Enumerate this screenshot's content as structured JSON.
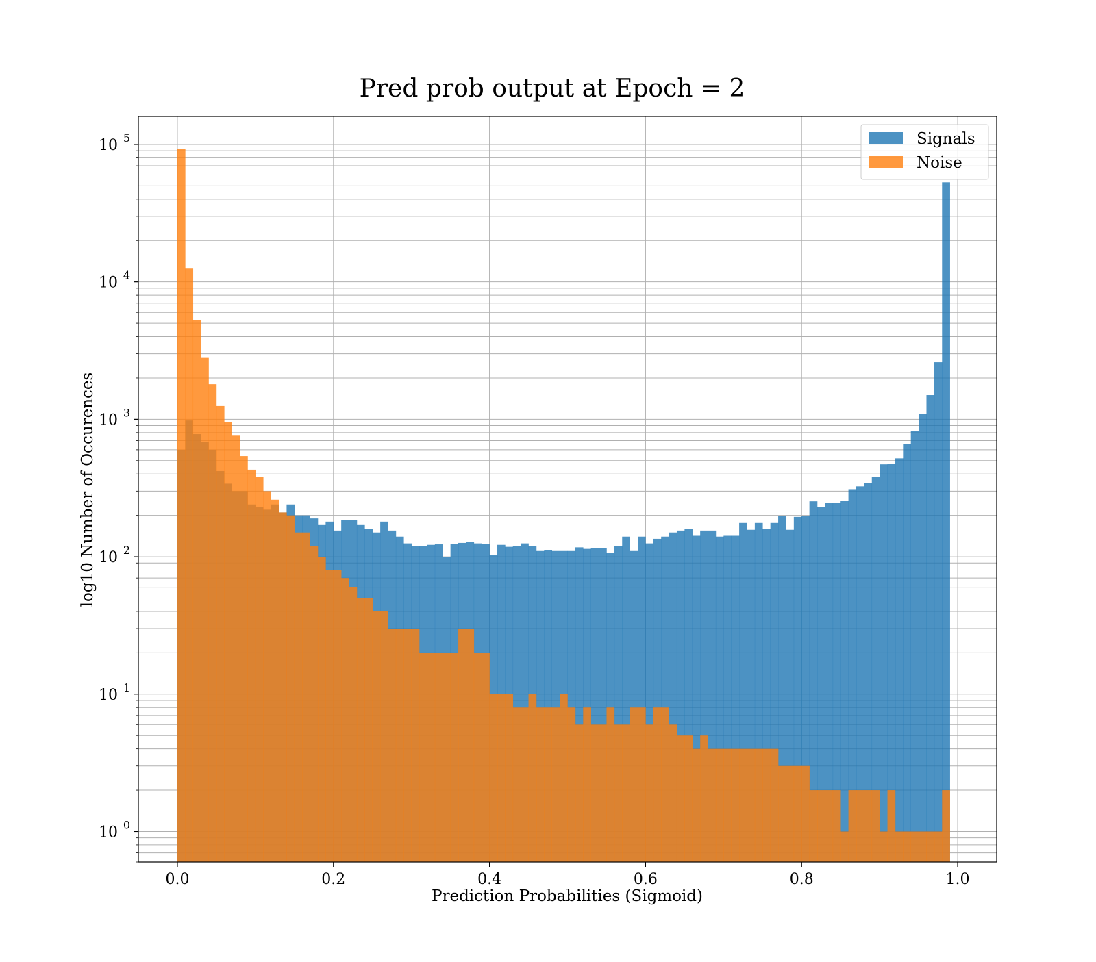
{
  "chart_data": {
    "type": "bar",
    "subtype": "histogram",
    "title": "Pred prob output at Epoch = 2",
    "xlabel": "Prediction Probabilities (Sigmoid)",
    "ylabel": "log10 Number of Occurences",
    "yscale": "log",
    "xlim": [
      -0.05,
      1.05
    ],
    "ylim": [
      0.6,
      160000
    ],
    "grid": true,
    "legend_position": "top-right",
    "xticks": [
      {
        "value": 0.0,
        "label": "0.0"
      },
      {
        "value": 0.2,
        "label": "0.2"
      },
      {
        "value": 0.4,
        "label": "0.4"
      },
      {
        "value": 0.6,
        "label": "0.6"
      },
      {
        "value": 0.8,
        "label": "0.8"
      },
      {
        "value": 1.0,
        "label": "1.0"
      }
    ],
    "yticks": [
      {
        "value": 1,
        "base": "10",
        "exp": "0"
      },
      {
        "value": 10,
        "base": "10",
        "exp": "1"
      },
      {
        "value": 100,
        "base": "10",
        "exp": "2"
      },
      {
        "value": 1000,
        "base": "10",
        "exp": "3"
      },
      {
        "value": 10000,
        "base": "10",
        "exp": "4"
      },
      {
        "value": 100000,
        "base": "10",
        "exp": "5"
      }
    ],
    "bins": {
      "start": 0.0,
      "end": 1.0,
      "count": 100
    },
    "series": [
      {
        "name": "Signals",
        "color": "#1f77b4",
        "opacity": 0.8,
        "values": [
          600,
          980,
          780,
          680,
          600,
          420,
          340,
          300,
          300,
          240,
          230,
          220,
          240,
          210,
          240,
          200,
          200,
          190,
          170,
          180,
          155,
          185,
          185,
          170,
          160,
          150,
          180,
          155,
          140,
          125,
          120,
          120,
          122,
          123,
          100,
          124,
          126,
          128,
          125,
          124,
          103,
          122,
          118,
          120,
          125,
          120,
          110,
          112,
          110,
          110,
          110,
          117,
          114,
          116,
          115,
          107,
          120,
          140,
          110,
          140,
          125,
          135,
          140,
          150,
          155,
          160,
          142,
          155,
          155,
          140,
          142,
          142,
          176,
          157,
          176,
          160,
          176,
          197,
          157,
          195,
          198,
          253,
          230,
          247,
          246,
          255,
          310,
          325,
          345,
          380,
          470,
          475,
          520,
          660,
          820,
          1100,
          1500,
          2600,
          53000,
          0
        ]
      },
      {
        "name": "Noise",
        "color": "#ff7f0e",
        "opacity": 0.8,
        "values": [
          93000,
          12500,
          5300,
          2800,
          1800,
          1250,
          950,
          760,
          540,
          430,
          380,
          300,
          260,
          210,
          200,
          150,
          150,
          120,
          100,
          80,
          80,
          70,
          60,
          50,
          50,
          40,
          40,
          30,
          30,
          30,
          30,
          20,
          20,
          20,
          20,
          20,
          30,
          30,
          20,
          20,
          10,
          10,
          10,
          8,
          8,
          10,
          8,
          8,
          8,
          10,
          8,
          6,
          8,
          6,
          6,
          8,
          6,
          6,
          8,
          8,
          6,
          8,
          8,
          6,
          5,
          5,
          4,
          5,
          4,
          4,
          4,
          4,
          4,
          4,
          4,
          4,
          4,
          3,
          3,
          3,
          3,
          2,
          2,
          2,
          2,
          1,
          2,
          2,
          2,
          2,
          1,
          2,
          1,
          1,
          1,
          1,
          1,
          1,
          2,
          0
        ]
      }
    ]
  }
}
